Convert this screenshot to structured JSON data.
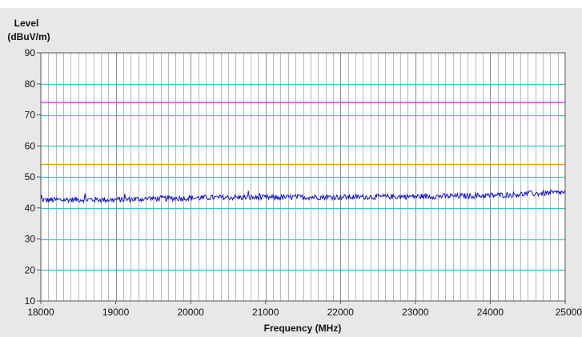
{
  "chart_data": {
    "type": "line",
    "title": "",
    "ylabel_line1": "Level",
    "ylabel_line2": "(dBuV/m)",
    "xlabel": "Frequency (MHz)",
    "xlim": [
      18000,
      25000
    ],
    "ylim": [
      10,
      90
    ],
    "x_ticks": [
      18000,
      19000,
      20000,
      21000,
      22000,
      23000,
      24000,
      25000
    ],
    "y_ticks": [
      10,
      20,
      30,
      40,
      50,
      60,
      70,
      80,
      90
    ],
    "x_minor_step": 100,
    "grid": true,
    "colors": {
      "horizontal_grid": "#33c7c7",
      "vertical_grid": "#b8b8b8",
      "major_vertical_grid": "#8c8c8c",
      "plot_background": "#ffffff",
      "frame_background": "#e8e8e8"
    },
    "limit_lines": [
      {
        "value": 74,
        "color": "#e040e0"
      },
      {
        "value": 54,
        "color": "#f0a020"
      }
    ],
    "series": [
      {
        "color": "#1010d0",
        "x": [
          18000,
          18500,
          19000,
          19500,
          20000,
          20500,
          21000,
          21500,
          22000,
          22500,
          23000,
          23500,
          24000,
          24500,
          25000
        ],
        "values": [
          42.5,
          42.7,
          42.6,
          43.0,
          43.2,
          43.4,
          43.3,
          43.5,
          43.5,
          43.6,
          43.7,
          43.8,
          44.0,
          44.5,
          45.0
        ],
        "noise_amplitude": 0.9
      }
    ]
  }
}
